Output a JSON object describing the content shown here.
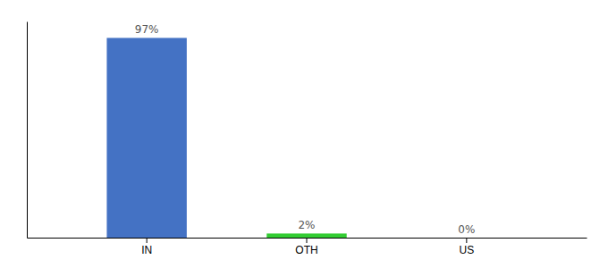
{
  "chart_data": {
    "type": "bar",
    "categories": [
      "IN",
      "OTH",
      "US"
    ],
    "values": [
      97,
      2,
      0
    ],
    "value_labels": [
      "97%",
      "2%",
      "0%"
    ],
    "colors": [
      "#4472c4",
      "#33cc33",
      "#4472c4"
    ],
    "ylim": [
      0,
      105
    ],
    "data_labels": true,
    "tick_labels": "x"
  }
}
